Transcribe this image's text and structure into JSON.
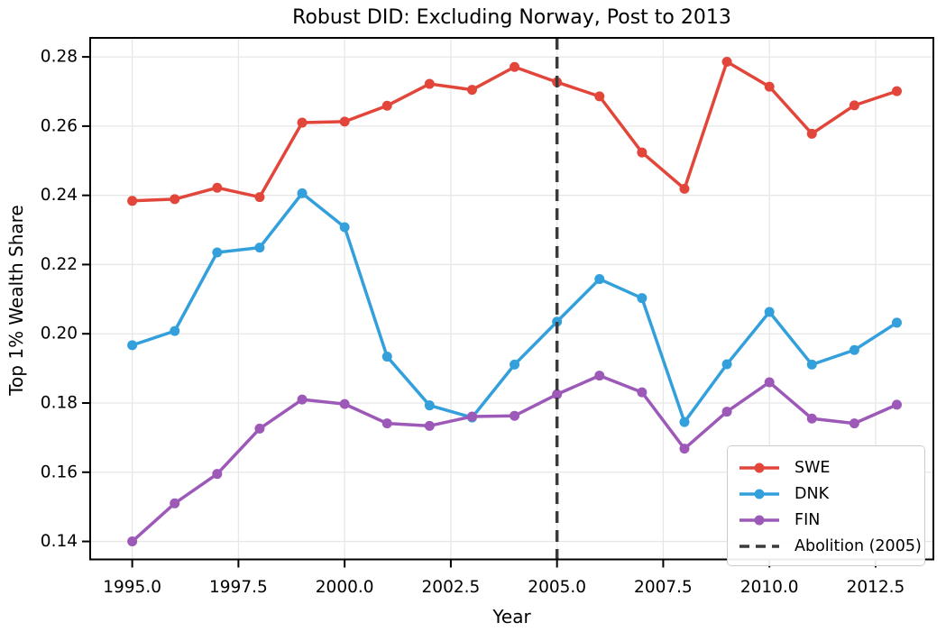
{
  "chart_data": {
    "type": "line",
    "title": "Robust DID: Excluding Norway, Post to 2013",
    "xlabel": "Year",
    "ylabel": "Top 1% Wealth Share",
    "grid": true,
    "legend_position": "lower right",
    "x": [
      1995,
      1996,
      1997,
      1998,
      1999,
      2000,
      2001,
      2002,
      2003,
      2004,
      2005,
      2006,
      2007,
      2008,
      2009,
      2010,
      2011,
      2012,
      2013
    ],
    "series": [
      {
        "name": "SWE",
        "color": "#e2463a",
        "values": [
          0.2384,
          0.2389,
          0.2422,
          0.2395,
          0.261,
          0.2613,
          0.2659,
          0.2722,
          0.2705,
          0.2771,
          0.2727,
          0.2686,
          0.2524,
          0.2419,
          0.2786,
          0.2714,
          0.2578,
          0.266,
          0.2701
        ]
      },
      {
        "name": "DNK",
        "color": "#33a0dc",
        "values": [
          0.1967,
          0.2008,
          0.2235,
          0.2249,
          0.2406,
          0.2308,
          0.1934,
          0.1793,
          0.1758,
          0.1911,
          0.2035,
          0.2158,
          0.2103,
          0.1745,
          0.1912,
          0.2063,
          0.1911,
          0.1953,
          0.2032
        ]
      },
      {
        "name": "FIN",
        "color": "#9c59b8",
        "values": [
          0.14,
          0.151,
          0.1595,
          0.1726,
          0.181,
          0.1797,
          0.1741,
          0.1734,
          0.1761,
          0.1763,
          0.1825,
          0.1879,
          0.1831,
          0.1668,
          0.1775,
          0.186,
          0.1755,
          0.1741,
          0.1795
        ]
      }
    ],
    "vline": {
      "x": 2005,
      "label": "Abolition (2005)",
      "color": "#3b3b3b",
      "style": "dashed"
    },
    "xlim": [
      1994.01,
      2013.86
    ],
    "ylim": [
      0.1348,
      0.2855
    ],
    "xticks": {
      "values": [
        1995.0,
        1997.5,
        2000.0,
        2002.5,
        2005.0,
        2007.5,
        2010.0,
        2012.5
      ],
      "labels": [
        "1995.0",
        "1997.5",
        "2000.0",
        "2002.5",
        "2005.0",
        "2007.5",
        "2010.0",
        "2012.5"
      ]
    },
    "yticks": {
      "values": [
        0.14,
        0.16,
        0.18,
        0.2,
        0.22,
        0.24,
        0.26,
        0.28
      ],
      "labels": [
        "0.14",
        "0.16",
        "0.18",
        "0.20",
        "0.22",
        "0.24",
        "0.26",
        "0.28"
      ]
    }
  },
  "style_colors": {
    "grid": "#e7e7e7",
    "spine": "#000000",
    "tick": "#000000",
    "background": "#ffffff"
  }
}
